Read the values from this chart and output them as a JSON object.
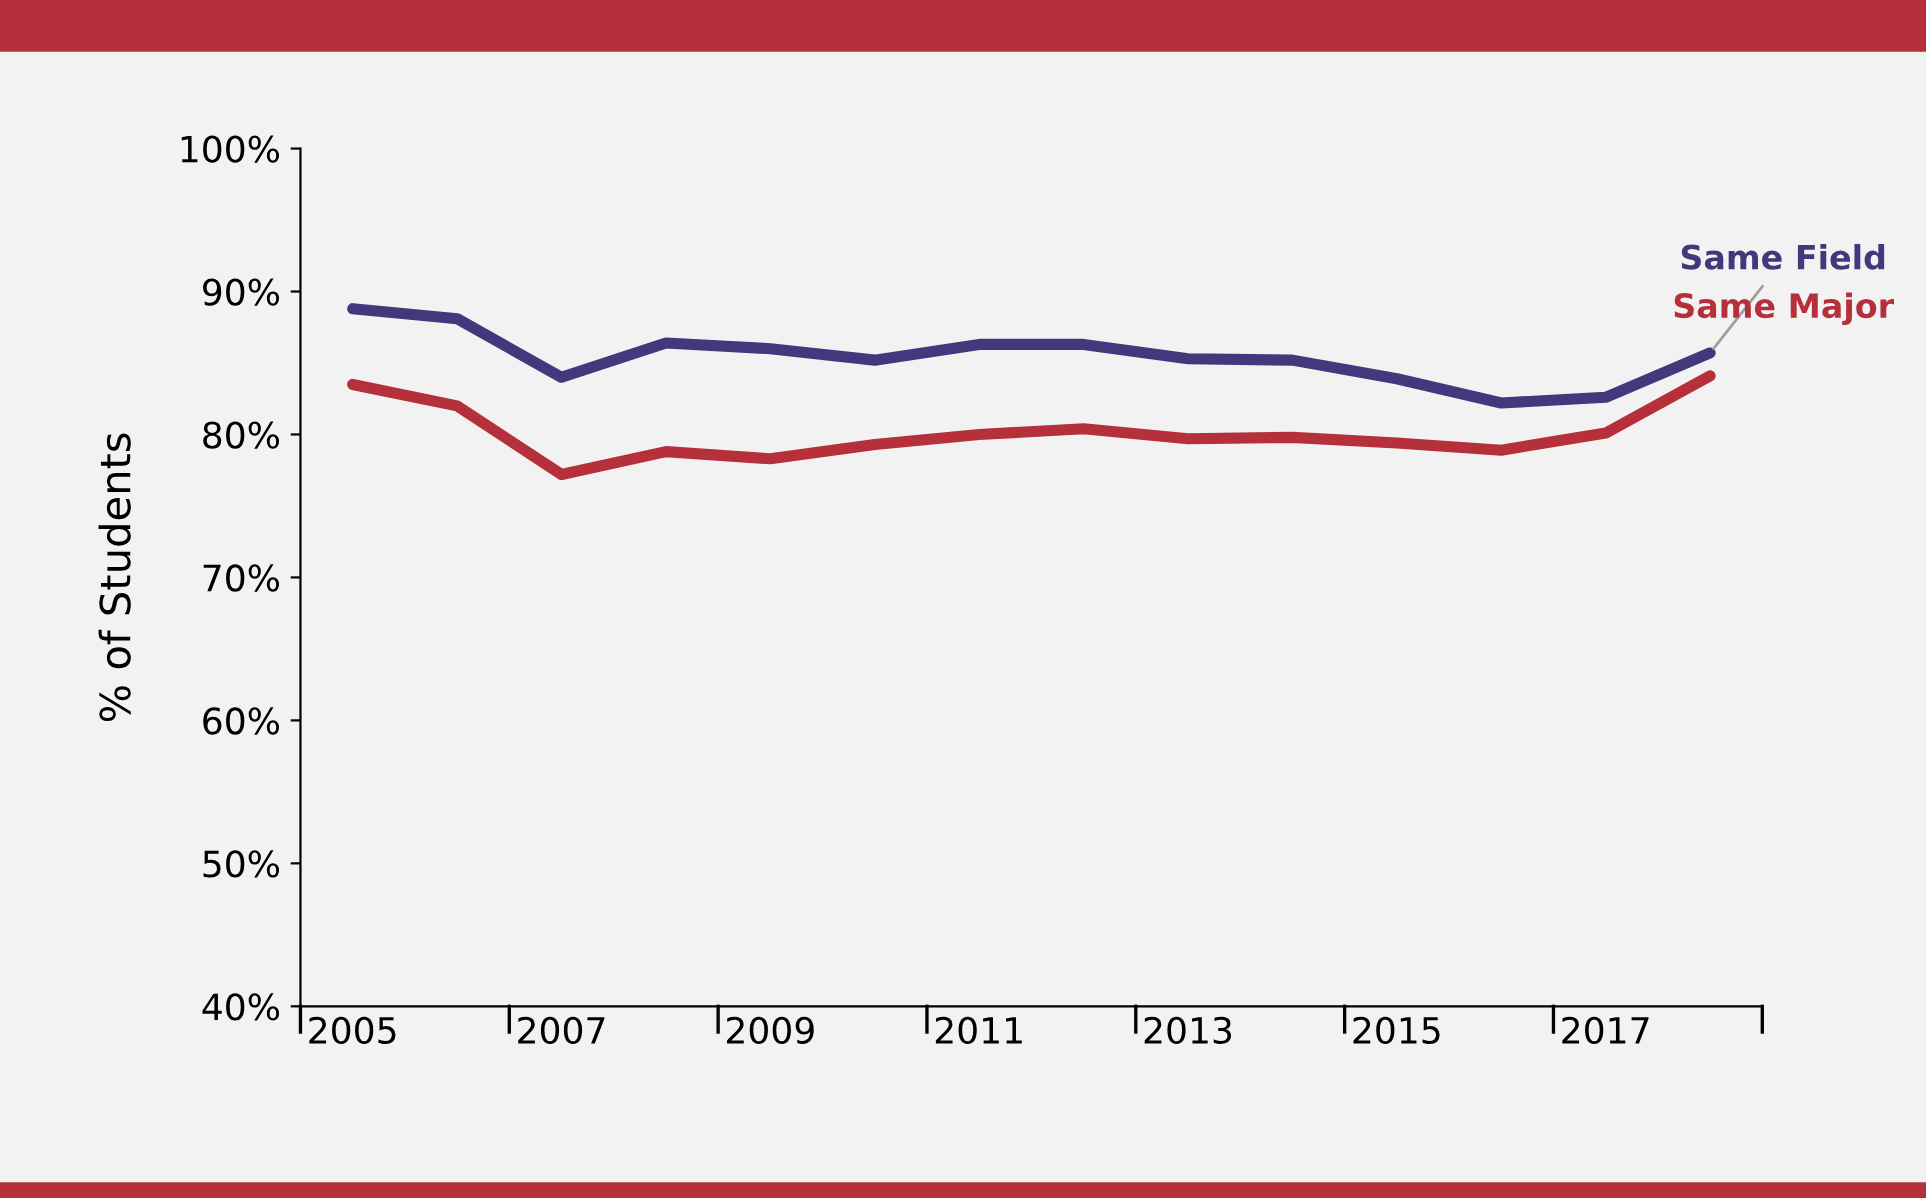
{
  "chart_data": {
    "type": "line",
    "ylabel": "% of Students",
    "categories": [
      "2005",
      null,
      "2007",
      null,
      "2009",
      null,
      "2011",
      null,
      "2013",
      null,
      "2015",
      null,
      "2017",
      null
    ],
    "series": [
      {
        "name": "Same Field",
        "color": "#43387c",
        "values": [
          88.8,
          88.1,
          84.0,
          86.4,
          86.0,
          85.2,
          86.3,
          86.3,
          85.3,
          85.2,
          83.9,
          82.2,
          82.6,
          85.7
        ]
      },
      {
        "name": "Same Major",
        "color": "#b5303a",
        "values": [
          83.5,
          82.0,
          77.2,
          78.8,
          78.3,
          79.3,
          80.0,
          80.4,
          79.7,
          79.8,
          79.4,
          78.9,
          80.1,
          84.1
        ]
      }
    ],
    "ylim": [
      40,
      100
    ],
    "yticks": [
      {
        "value": 40,
        "label": "40%"
      },
      {
        "value": 50,
        "label": "50%"
      },
      {
        "value": 60,
        "label": "60%"
      },
      {
        "value": 70,
        "label": "70%"
      },
      {
        "value": 80,
        "label": "80%"
      },
      {
        "value": 90,
        "label": "90%"
      },
      {
        "value": 100,
        "label": "100%"
      }
    ],
    "grid": false,
    "legend": false,
    "marker": "none",
    "line_style": "solid"
  }
}
